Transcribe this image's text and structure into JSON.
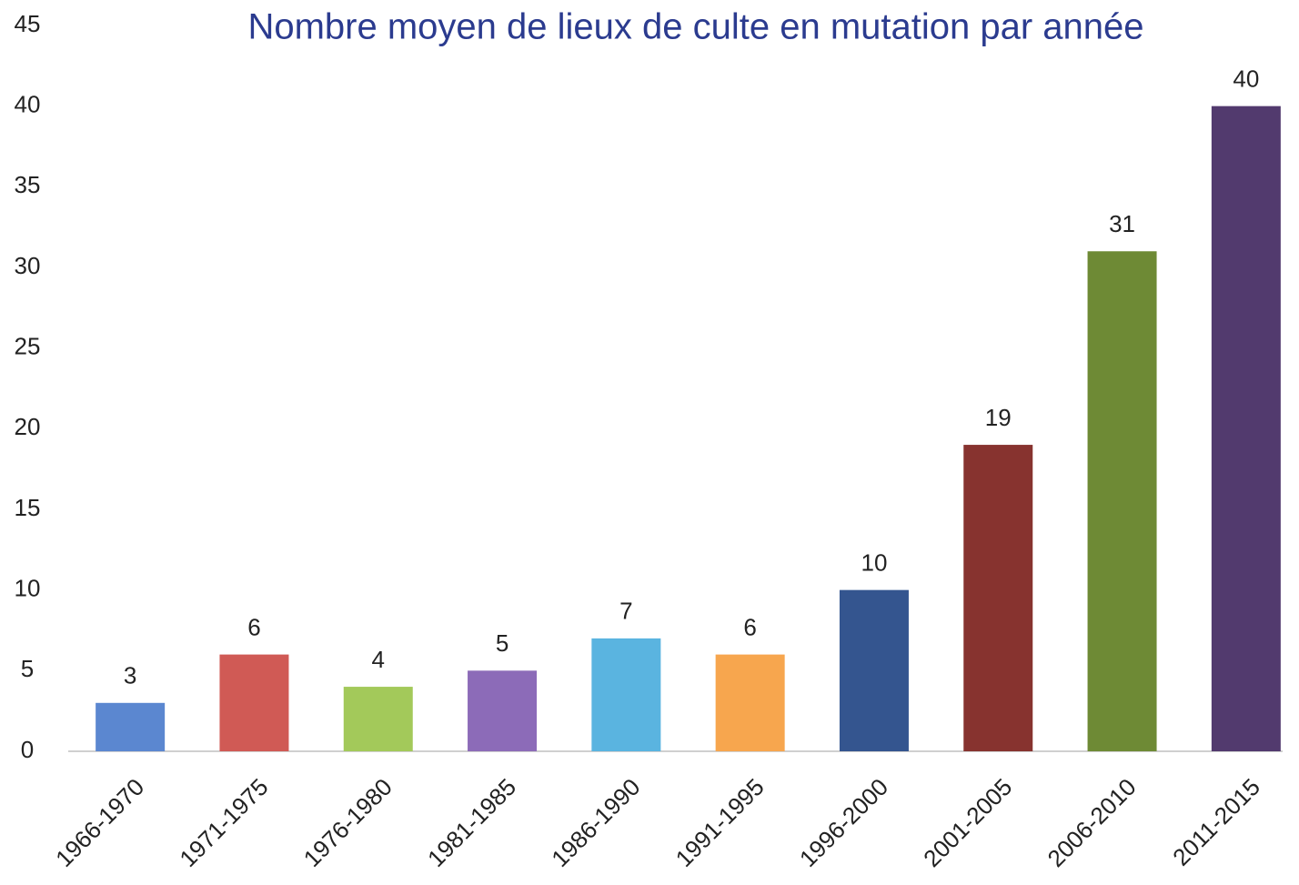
{
  "chart_data": {
    "type": "bar",
    "title": "Nombre moyen de lieux de culte en mutation par année",
    "categories": [
      "1966-1970",
      "1971-1975",
      "1976-1980",
      "1981-1985",
      "1986-1990",
      "1991-1995",
      "1996-2000",
      "2001-2005",
      "2006-2010",
      "2011-2015"
    ],
    "values": [
      3,
      6,
      4,
      5,
      7,
      6,
      10,
      19,
      31,
      40
    ],
    "colors": [
      "#5b87d0",
      "#d05a55",
      "#a3c95a",
      "#8c6bb8",
      "#5ab4e0",
      "#f7a64e",
      "#34558f",
      "#87332f",
      "#6e8a35",
      "#523a6e"
    ],
    "ylim": [
      0,
      45
    ],
    "yticks": [
      0,
      5,
      10,
      15,
      20,
      25,
      30,
      35,
      40,
      45
    ],
    "grid": false
  }
}
